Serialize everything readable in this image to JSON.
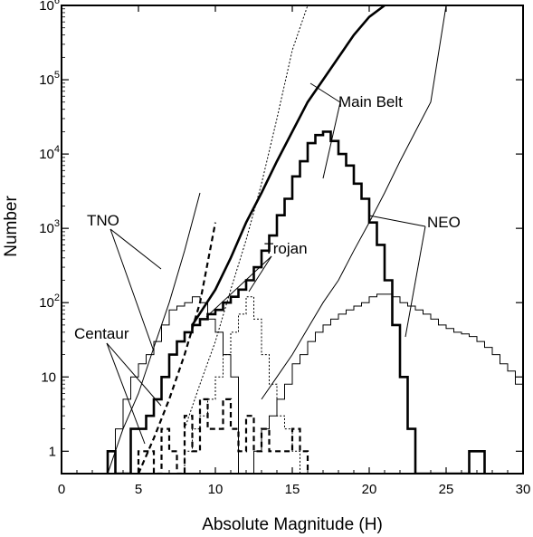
{
  "chart_data": {
    "type": "line",
    "xlabel": "Absolute Magnitude (H)",
    "ylabel": "Number",
    "xlim": [
      0,
      30
    ],
    "ylim": [
      0.5,
      1000000
    ],
    "yscale": "log",
    "x_ticks": [
      "0",
      "5",
      "10",
      "15",
      "20",
      "25",
      "30"
    ],
    "y_ticks": [
      {
        "value": 1,
        "label": "1"
      },
      {
        "value": 10,
        "label": "10"
      },
      {
        "value": 100,
        "label": "10",
        "exp": "2"
      },
      {
        "value": 1000,
        "label": "10",
        "exp": "3"
      },
      {
        "value": 10000,
        "label": "10",
        "exp": "4"
      },
      {
        "value": 100000,
        "label": "10",
        "exp": "5"
      },
      {
        "value": 1000000,
        "label": "10",
        "exp": "6"
      }
    ],
    "grid": false,
    "annotations": [
      "TNO",
      "Centaur",
      "Trojan",
      "Main Belt",
      "NEO"
    ],
    "histograms": [
      {
        "group": "Main Belt",
        "style": "thick",
        "bin_width": 0.5,
        "edges_start": 3,
        "counts": [
          1,
          0,
          0,
          2,
          2,
          3,
          5,
          10,
          20,
          30,
          40,
          50,
          60,
          70,
          80,
          100,
          120,
          150,
          200,
          300,
          500,
          800,
          1500,
          2500,
          5000,
          8000,
          14000,
          18000,
          20000,
          15000,
          10000,
          7000,
          4000,
          2500,
          1200,
          600,
          200,
          50,
          10,
          2,
          0,
          0,
          0,
          0,
          0,
          0,
          0,
          1,
          1
        ]
      },
      {
        "group": "NEO",
        "style": "thin",
        "bin_width": 0.5,
        "edges_start": 12.5,
        "counts": [
          1,
          2,
          3,
          5,
          8,
          15,
          20,
          30,
          40,
          50,
          60,
          70,
          80,
          90,
          100,
          120,
          130,
          130,
          120,
          100,
          90,
          80,
          70,
          60,
          50,
          45,
          40,
          38,
          35,
          30,
          25,
          20,
          15,
          12,
          8,
          10,
          6,
          5,
          4,
          3,
          2,
          3,
          1,
          1
        ]
      },
      {
        "group": "TNO",
        "style": "thin",
        "bin_width": 0.5,
        "edges_start": 3,
        "counts": [
          1,
          2,
          5,
          10,
          15,
          20,
          30,
          50,
          80,
          90,
          100,
          120,
          100,
          60,
          40,
          20,
          10
        ]
      },
      {
        "group": "Trojan",
        "style": "dotted",
        "bin_width": 0.5,
        "edges_start": 8,
        "counts": [
          1,
          2,
          3,
          5,
          10,
          20,
          40,
          70,
          120,
          60,
          20,
          8,
          3,
          2,
          1
        ]
      },
      {
        "group": "Centaur",
        "style": "dashed",
        "bin_width": 0.5,
        "edges_start": 5,
        "counts": [
          1,
          1,
          0,
          2,
          1,
          0,
          3,
          1,
          5,
          2,
          2,
          5,
          2,
          1,
          3,
          1,
          2,
          1,
          1,
          1,
          2,
          1
        ]
      }
    ],
    "lines": [
      {
        "group": "Main Belt",
        "style": "thick",
        "x": [
          8.5,
          10,
          11,
          12,
          13,
          14,
          15,
          16,
          17,
          18,
          19,
          20,
          21
        ],
        "y": [
          50,
          150,
          400,
          1200,
          3000,
          8000,
          20000,
          50000,
          100000,
          200000,
          400000,
          700000,
          1000000
        ]
      },
      {
        "group": "NEO",
        "style": "thin",
        "x": [
          13,
          14,
          15,
          16,
          17,
          18,
          19,
          20,
          21,
          22,
          23,
          24,
          25
        ],
        "y": [
          5,
          10,
          20,
          45,
          100,
          200,
          500,
          1200,
          3000,
          8000,
          20000,
          50000,
          1000000
        ]
      },
      {
        "group": "TNO",
        "style": "thin",
        "x": [
          3,
          4,
          5,
          6,
          7,
          8,
          9
        ],
        "y": [
          0.5,
          2,
          6,
          25,
          100,
          500,
          3000
        ]
      },
      {
        "group": "Trojan",
        "style": "dotted",
        "x": [
          8,
          9,
          10,
          11,
          12,
          13,
          14,
          15,
          16
        ],
        "y": [
          2,
          8,
          30,
          150,
          700,
          4000,
          30000,
          250000,
          1000000
        ]
      },
      {
        "group": "Centaur",
        "style": "dashed",
        "x": [
          5,
          6,
          7,
          8,
          9,
          10
        ],
        "y": [
          0.5,
          1.5,
          5,
          20,
          100,
          1200
        ]
      }
    ]
  }
}
